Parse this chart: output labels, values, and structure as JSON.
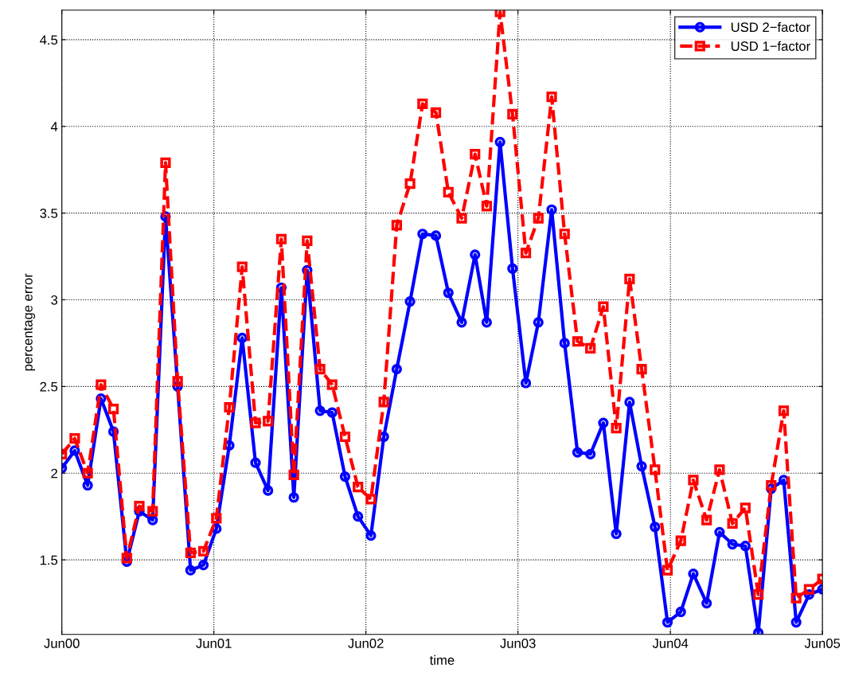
{
  "chart_data": {
    "type": "line",
    "xlabel": "time",
    "ylabel": "percentage error",
    "x": [
      "2000-06-01",
      "2000-07-02",
      "2000-08-02",
      "2000-09-03",
      "2000-10-03",
      "2000-11-04",
      "2000-12-04",
      "2001-01-05",
      "2001-02-05",
      "2001-03-06",
      "2001-04-06",
      "2001-05-07",
      "2001-06-07",
      "2001-07-08",
      "2001-08-08",
      "2001-09-09",
      "2001-10-09",
      "2001-11-10",
      "2001-12-10",
      "2002-01-11",
      "2002-02-11",
      "2002-03-12",
      "2002-04-12",
      "2002-05-13",
      "2002-06-13",
      "2002-07-14",
      "2002-08-14",
      "2002-09-15",
      "2002-10-15",
      "2002-11-16",
      "2002-12-16",
      "2003-01-17",
      "2003-02-18",
      "2003-03-18",
      "2003-04-19",
      "2003-05-19",
      "2003-06-20",
      "2003-07-20",
      "2003-08-21",
      "2003-09-21",
      "2003-10-22",
      "2003-11-22",
      "2003-12-23",
      "2004-01-23",
      "2004-02-24",
      "2004-03-24",
      "2004-04-25",
      "2004-05-25",
      "2004-06-26",
      "2004-07-26",
      "2004-08-27",
      "2004-09-27",
      "2004-10-28",
      "2004-11-28",
      "2004-12-29",
      "2005-01-29",
      "2005-02-28",
      "2005-03-30",
      "2005-04-30",
      "2005-06-01"
    ],
    "series": [
      {
        "name": "USD 2−factor",
        "color": "#0000ff",
        "marker": "circle",
        "line_style": "solid",
        "values": [
          2.03,
          2.13,
          1.93,
          2.43,
          2.24,
          1.49,
          1.78,
          1.73,
          3.48,
          2.5,
          1.44,
          1.47,
          1.68,
          2.16,
          2.78,
          2.06,
          1.9,
          3.07,
          1.86,
          3.17,
          2.36,
          2.35,
          1.98,
          1.75,
          1.64,
          2.21,
          2.6,
          2.99,
          3.38,
          3.37,
          3.04,
          2.87,
          3.26,
          2.87,
          3.91,
          3.18,
          2.52,
          2.87,
          3.52,
          2.75,
          2.12,
          2.11,
          2.29,
          1.65,
          2.41,
          2.04,
          1.69,
          1.14,
          1.2,
          1.42,
          1.25,
          1.66,
          1.59,
          1.58,
          1.08,
          1.91,
          1.96,
          1.14,
          1.3,
          1.33
        ]
      },
      {
        "name": "USD 1−factor",
        "color": "#ff0000",
        "marker": "square",
        "line_style": "dashed",
        "values": [
          2.11,
          2.2,
          2.0,
          2.51,
          2.37,
          1.51,
          1.81,
          1.78,
          3.79,
          2.53,
          1.54,
          1.55,
          1.74,
          2.38,
          3.19,
          2.29,
          2.3,
          3.35,
          1.99,
          3.34,
          2.6,
          2.51,
          2.21,
          1.92,
          1.85,
          2.41,
          3.43,
          3.67,
          4.13,
          4.08,
          3.62,
          3.47,
          3.84,
          3.54,
          4.66,
          4.07,
          3.27,
          3.47,
          4.17,
          3.38,
          2.76,
          2.72,
          2.96,
          2.26,
          3.12,
          2.6,
          2.02,
          1.44,
          1.61,
          1.96,
          1.73,
          2.02,
          1.71,
          1.8,
          1.3,
          1.93,
          2.36,
          1.28,
          1.33,
          1.39
        ]
      }
    ],
    "xlim": [
      "2000-06-01",
      "2005-06-01"
    ],
    "xticks": [
      {
        "value": "2000-06-01",
        "label": "Jun00"
      },
      {
        "value": "2001-06-01",
        "label": "Jun01"
      },
      {
        "value": "2002-06-01",
        "label": "Jun02"
      },
      {
        "value": "2003-06-01",
        "label": "Jun03"
      },
      {
        "value": "2004-06-01",
        "label": "Jun04"
      },
      {
        "value": "2005-06-01",
        "label": "Jun05"
      }
    ],
    "ylim": [
      1.07,
      4.67
    ],
    "yticks": [
      1.5,
      2,
      2.5,
      3,
      3.5,
      4,
      4.5
    ],
    "grid": true,
    "legend": "top right"
  }
}
